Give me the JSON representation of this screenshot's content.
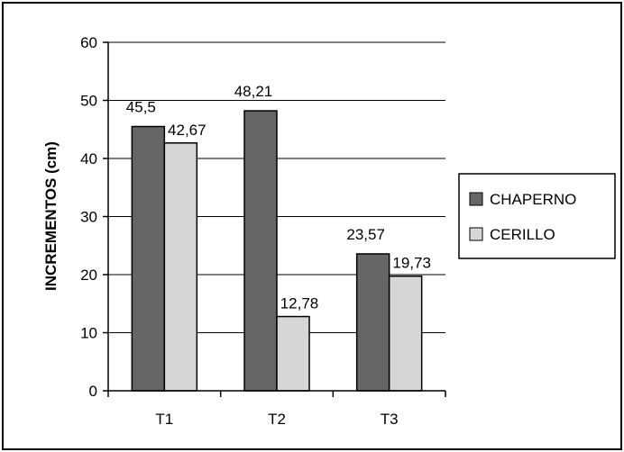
{
  "chart_data": {
    "type": "bar",
    "title": "",
    "xlabel": "",
    "ylabel": "INCREMENTOS (cm)",
    "categories": [
      "T1",
      "T2",
      "T3"
    ],
    "series": [
      {
        "name": "CHAPERNO",
        "values": [
          45.5,
          48.21,
          23.57
        ],
        "labels": [
          "45,5",
          "48,21",
          "23,57"
        ],
        "color": "#666666"
      },
      {
        "name": "CERILLO",
        "values": [
          42.67,
          12.78,
          19.73
        ],
        "labels": [
          "42,67",
          "12,78",
          "19,73"
        ],
        "color": "#d6d6d6"
      }
    ],
    "ylim": [
      0,
      60
    ],
    "yticks": [
      0,
      10,
      20,
      30,
      40,
      50,
      60
    ],
    "grid": true,
    "legend_position": "right"
  }
}
